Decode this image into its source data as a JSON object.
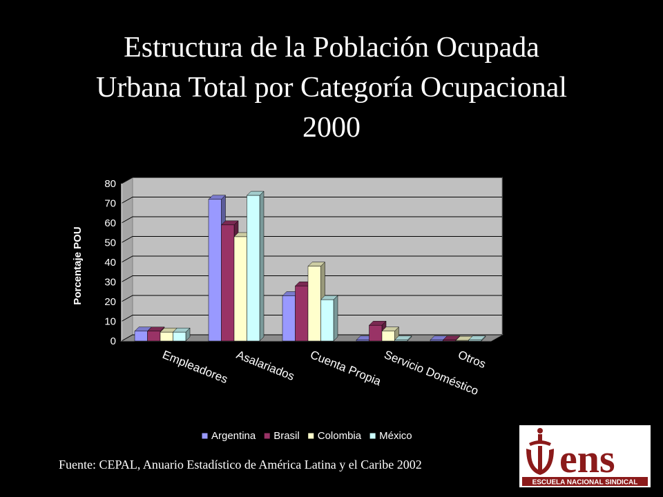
{
  "title_lines": [
    "Estructura de la Población Ocupada",
    "Urbana Total por Categoría Ocupacional",
    "2000"
  ],
  "source": "Fuente: CEPAL, Anuario Estadístico de América Latina y el Caribe 2002",
  "logo": {
    "text": "ens",
    "subtitle": "ESCUELA NACIONAL SINDICAL"
  },
  "chart_data": {
    "type": "bar",
    "categories": [
      "Empleadores",
      "Asalariados",
      "Cuenta Propia",
      "Servicio Doméstico",
      "Otros"
    ],
    "series": [
      {
        "name": "Argentina",
        "color": "#9999ff",
        "values": [
          5,
          72,
          23,
          0.5,
          0.5
        ]
      },
      {
        "name": "Brasil",
        "color": "#993366",
        "values": [
          5,
          59,
          28,
          8,
          0.5
        ]
      },
      {
        "name": "Colombia",
        "color": "#ffffcc",
        "values": [
          4.5,
          53,
          38,
          5,
          0.3
        ]
      },
      {
        "name": "México",
        "color": "#ccffff",
        "values": [
          4.5,
          74,
          21,
          0.5,
          0.5
        ]
      }
    ],
    "ylabel": "Porcentaje POU",
    "ylim": [
      0,
      80
    ],
    "yticks": [
      0,
      10,
      20,
      30,
      40,
      50,
      60,
      70,
      80
    ],
    "grid": true,
    "legend_position": "bottom"
  }
}
